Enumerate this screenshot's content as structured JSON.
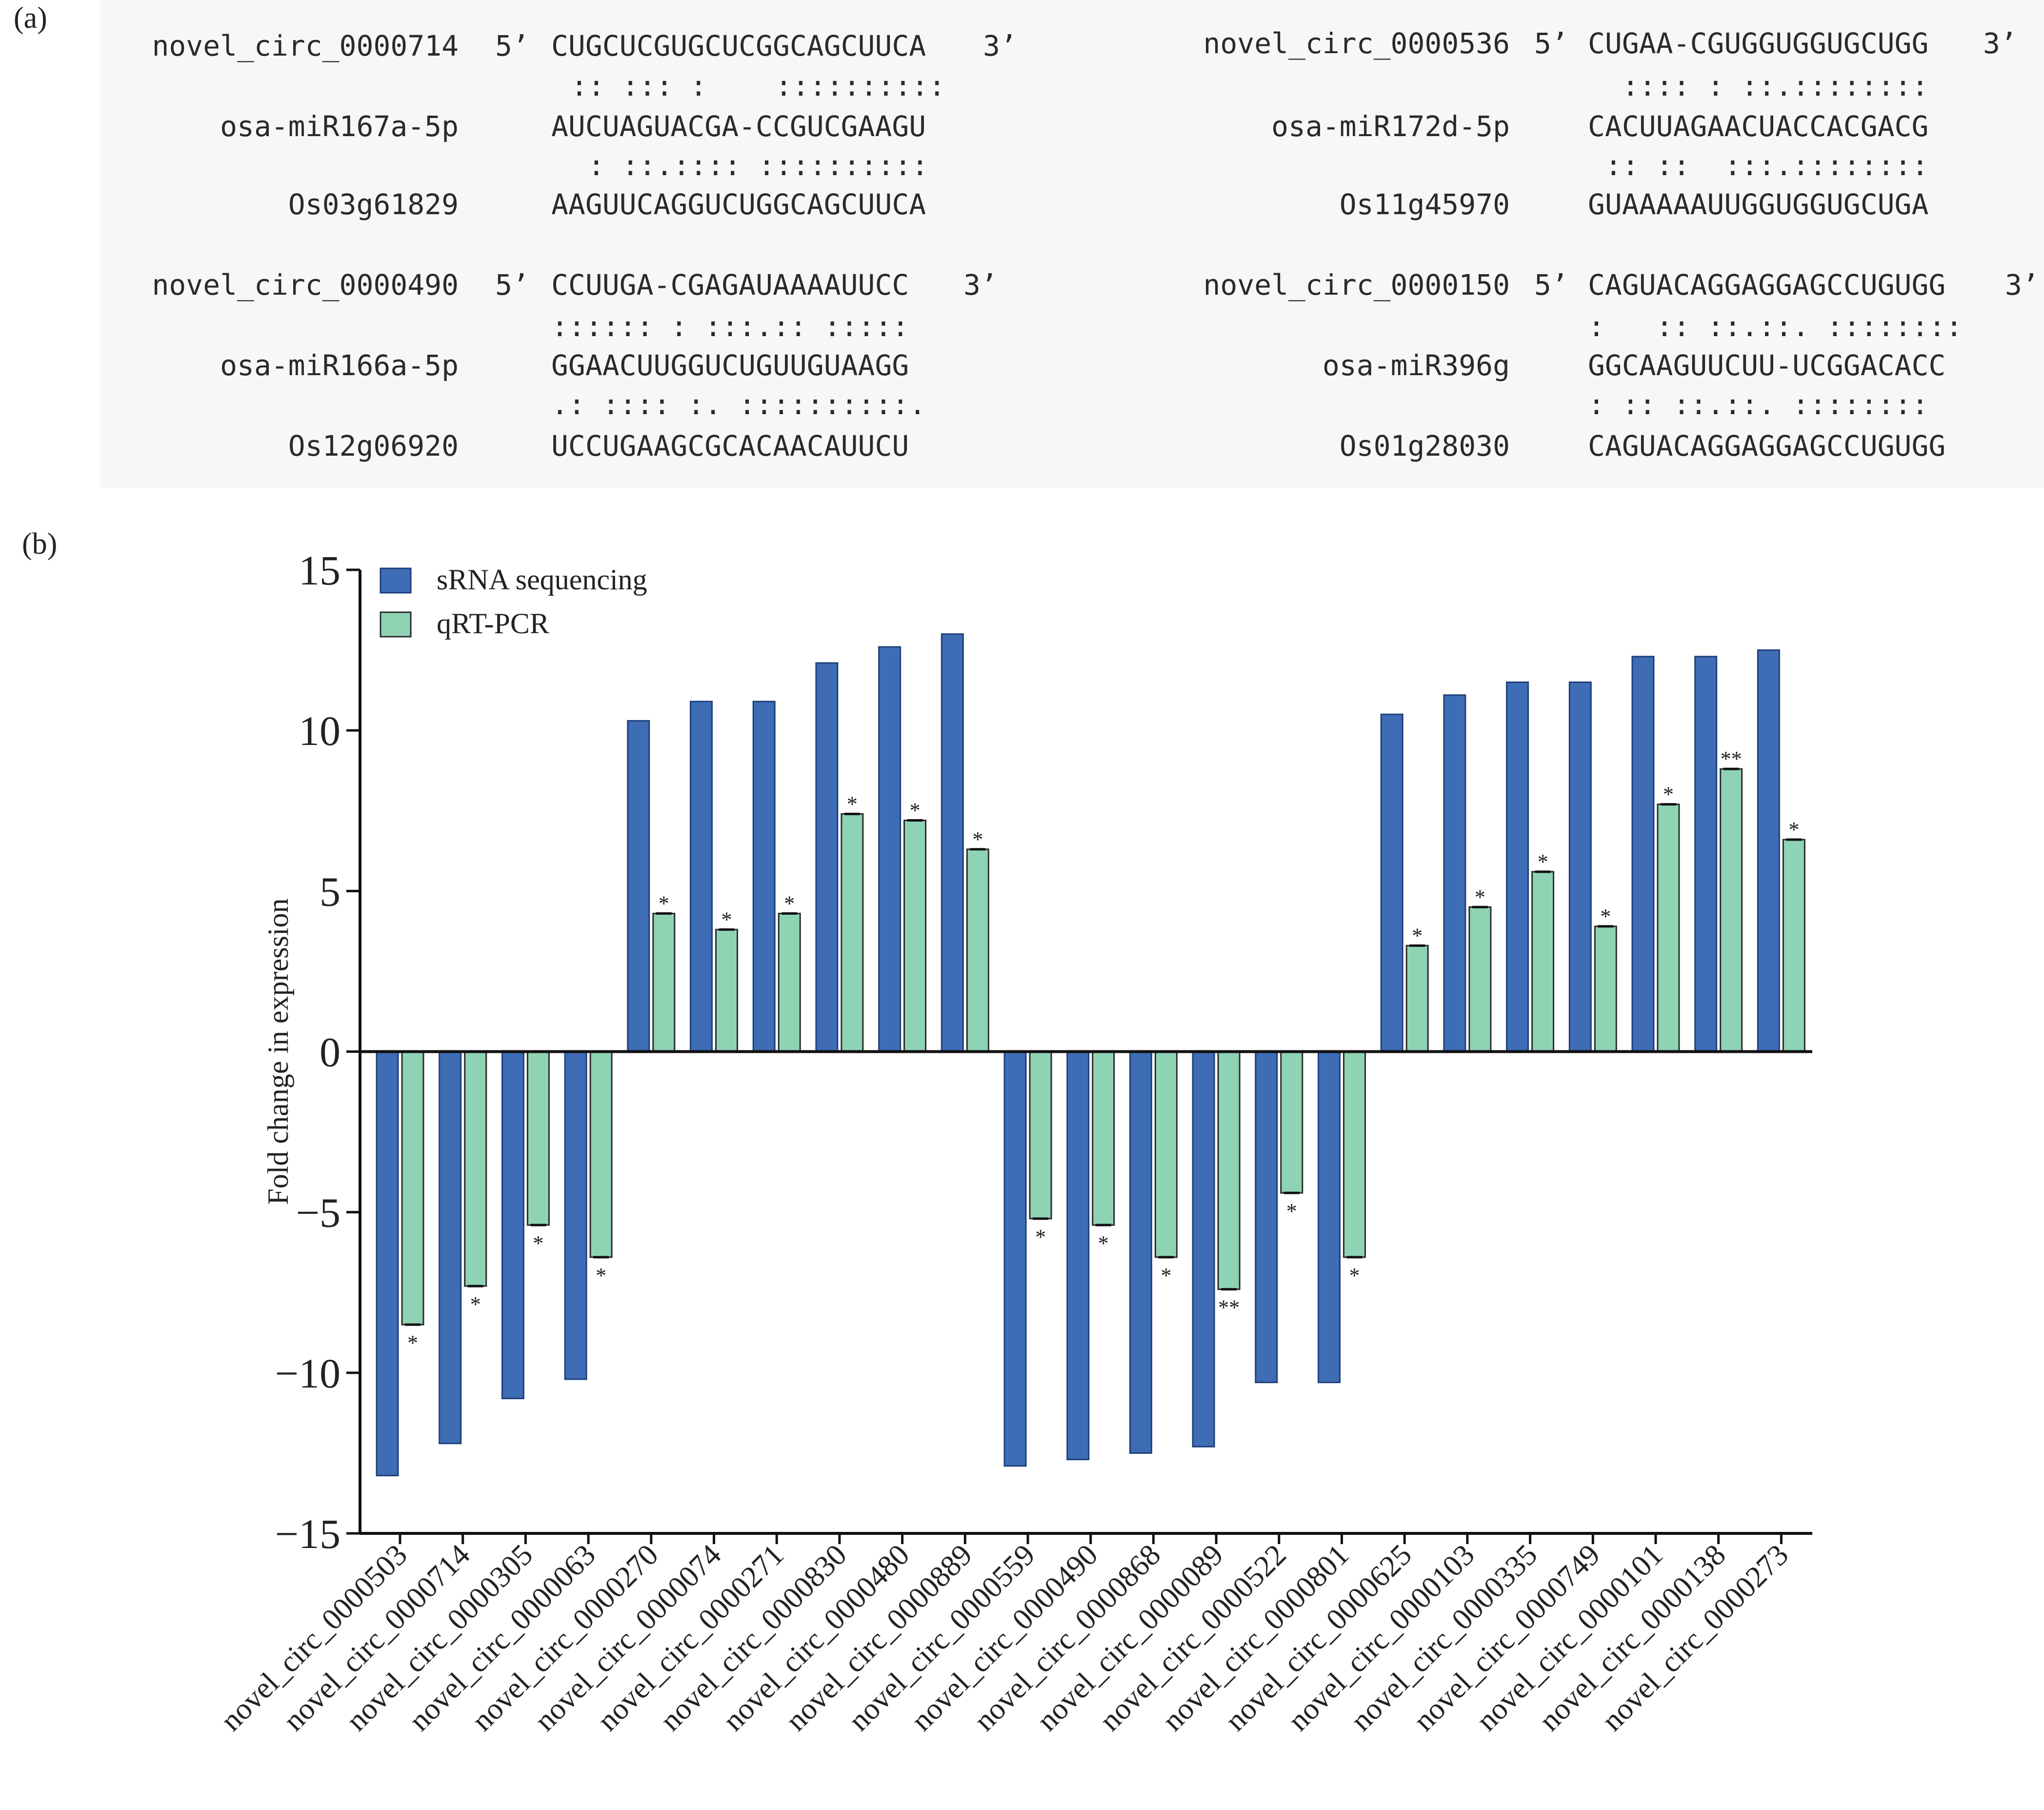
{
  "panel_a": {
    "label": "(a)",
    "alignments": [
      {
        "circ_name": "novel_circ_0000714",
        "five_prime": "5’",
        "circ_seq": "CUGCUCGUGCUCGGCAGCUUCA",
        "three_prime": "3’",
        "match1": ":: ::: :    ::::::::::",
        "mirna_name": "osa-miR167a-5p",
        "mirna_seq": "AUCUAGUACGA-CCGUCGAAGU",
        "match2": " : ::.:::: ::::::::::",
        "gene_name": "Os03g61829",
        "gene_seq": "AAGUUCAGGUCUGGCAGCUUCA"
      },
      {
        "circ_name": "novel_circ_0000536",
        "five_prime": "5’",
        "circ_seq": "CUGAA-CGUGGUGGUGCUGG",
        "three_prime": "3’",
        "match1": "  :::: : ::.::::::::",
        "mirna_name": "osa-miR172d-5p",
        "mirna_seq": "CACUUAGAACUACCACGACG",
        "match2": " :: ::  :::.::::::::",
        "gene_name": "Os11g45970",
        "gene_seq": "GUAAAAAUUGGUGGUGCUGA"
      },
      {
        "circ_name": "novel_circ_0000490",
        "five_prime": "5’",
        "circ_seq": "CCUUGA-CGAGAUAAAAUUCC",
        "three_prime": "3’",
        "match1": ":::::: : :::.:: :::::",
        "mirna_name": "osa-miR166a-5p",
        "mirna_seq": "GGAACUUGGUCUGUUGUAAGG",
        "match2": ".: :::: :. ::::::::::.",
        "gene_name": "Os12g06920",
        "gene_seq": "UCCUGAAGCGCACAACAUUCU"
      },
      {
        "circ_name": "novel_circ_0000150",
        "five_prime": "5’",
        "circ_seq": "CAGUACAGGAGGAGCCUGUGG",
        "three_prime": "3’",
        "match1": ":   :: ::.::. ::::::::",
        "mirna_name": "osa-miR396g",
        "mirna_seq": "GGCAAGUUCUU-UCGGACACC",
        "match2": ": :: ::.::. ::::::::",
        "gene_name": "Os01g28030",
        "gene_seq": "CAGUACAGGAGGAGCCUGUGG"
      }
    ]
  },
  "panel_b": {
    "label": "(b)"
  },
  "chart_data": {
    "type": "bar",
    "ylabel": "Fold change in expression",
    "xlabel": "",
    "ylim": [
      -15,
      15
    ],
    "yticks": [
      15,
      10,
      5,
      0,
      -5,
      -10,
      -15
    ],
    "ytick_labels": [
      "15",
      "10",
      "5",
      "0",
      "−5",
      "−10",
      "−15"
    ],
    "legend_position": "top-left",
    "categories": [
      "novel_circ_0000503",
      "novel_circ_0000714",
      "novel_circ_0000305",
      "novel_circ_0000063",
      "novel_circ_0000270",
      "novel_circ_0000074",
      "novel_circ_0000271",
      "novel_circ_0000830",
      "novel_circ_0000480",
      "novel_circ_0000889",
      "novel_circ_0000559",
      "novel_circ_0000490",
      "novel_circ_0000868",
      "novel_circ_0000089",
      "novel_circ_0000522",
      "novel_circ_0000801",
      "novel_circ_0000625",
      "novel_circ_0000103",
      "novel_circ_0000335",
      "novel_circ_0000749",
      "novel_circ_0000101",
      "novel_circ_0000138",
      "novel_circ_0000273"
    ],
    "series": [
      {
        "name": "sRNA sequencing",
        "color": "#3e6db5",
        "values": [
          -13.2,
          -12.2,
          -10.8,
          -10.2,
          10.3,
          10.9,
          10.9,
          12.1,
          12.6,
          13.0,
          -12.9,
          -12.7,
          -12.5,
          -12.3,
          -10.3,
          -10.3,
          10.5,
          11.1,
          11.5,
          11.5,
          12.3,
          12.3,
          12.5
        ]
      },
      {
        "name": "qRT-PCR",
        "color": "#8fd3b5",
        "values": [
          -8.5,
          -7.3,
          -5.4,
          -6.4,
          4.3,
          3.8,
          4.3,
          7.4,
          7.2,
          6.3,
          -5.2,
          -5.4,
          -6.4,
          -7.4,
          -4.4,
          -6.4,
          3.3,
          4.5,
          5.6,
          3.9,
          7.7,
          8.8,
          6.6
        ],
        "significance": [
          "*",
          "*",
          "*",
          "*",
          "*",
          "*",
          "*",
          "*",
          "*",
          "*",
          "*",
          "*",
          "*",
          "**",
          "*",
          "*",
          "*",
          "*",
          "*",
          "*",
          "*",
          "**",
          "*"
        ]
      }
    ]
  }
}
